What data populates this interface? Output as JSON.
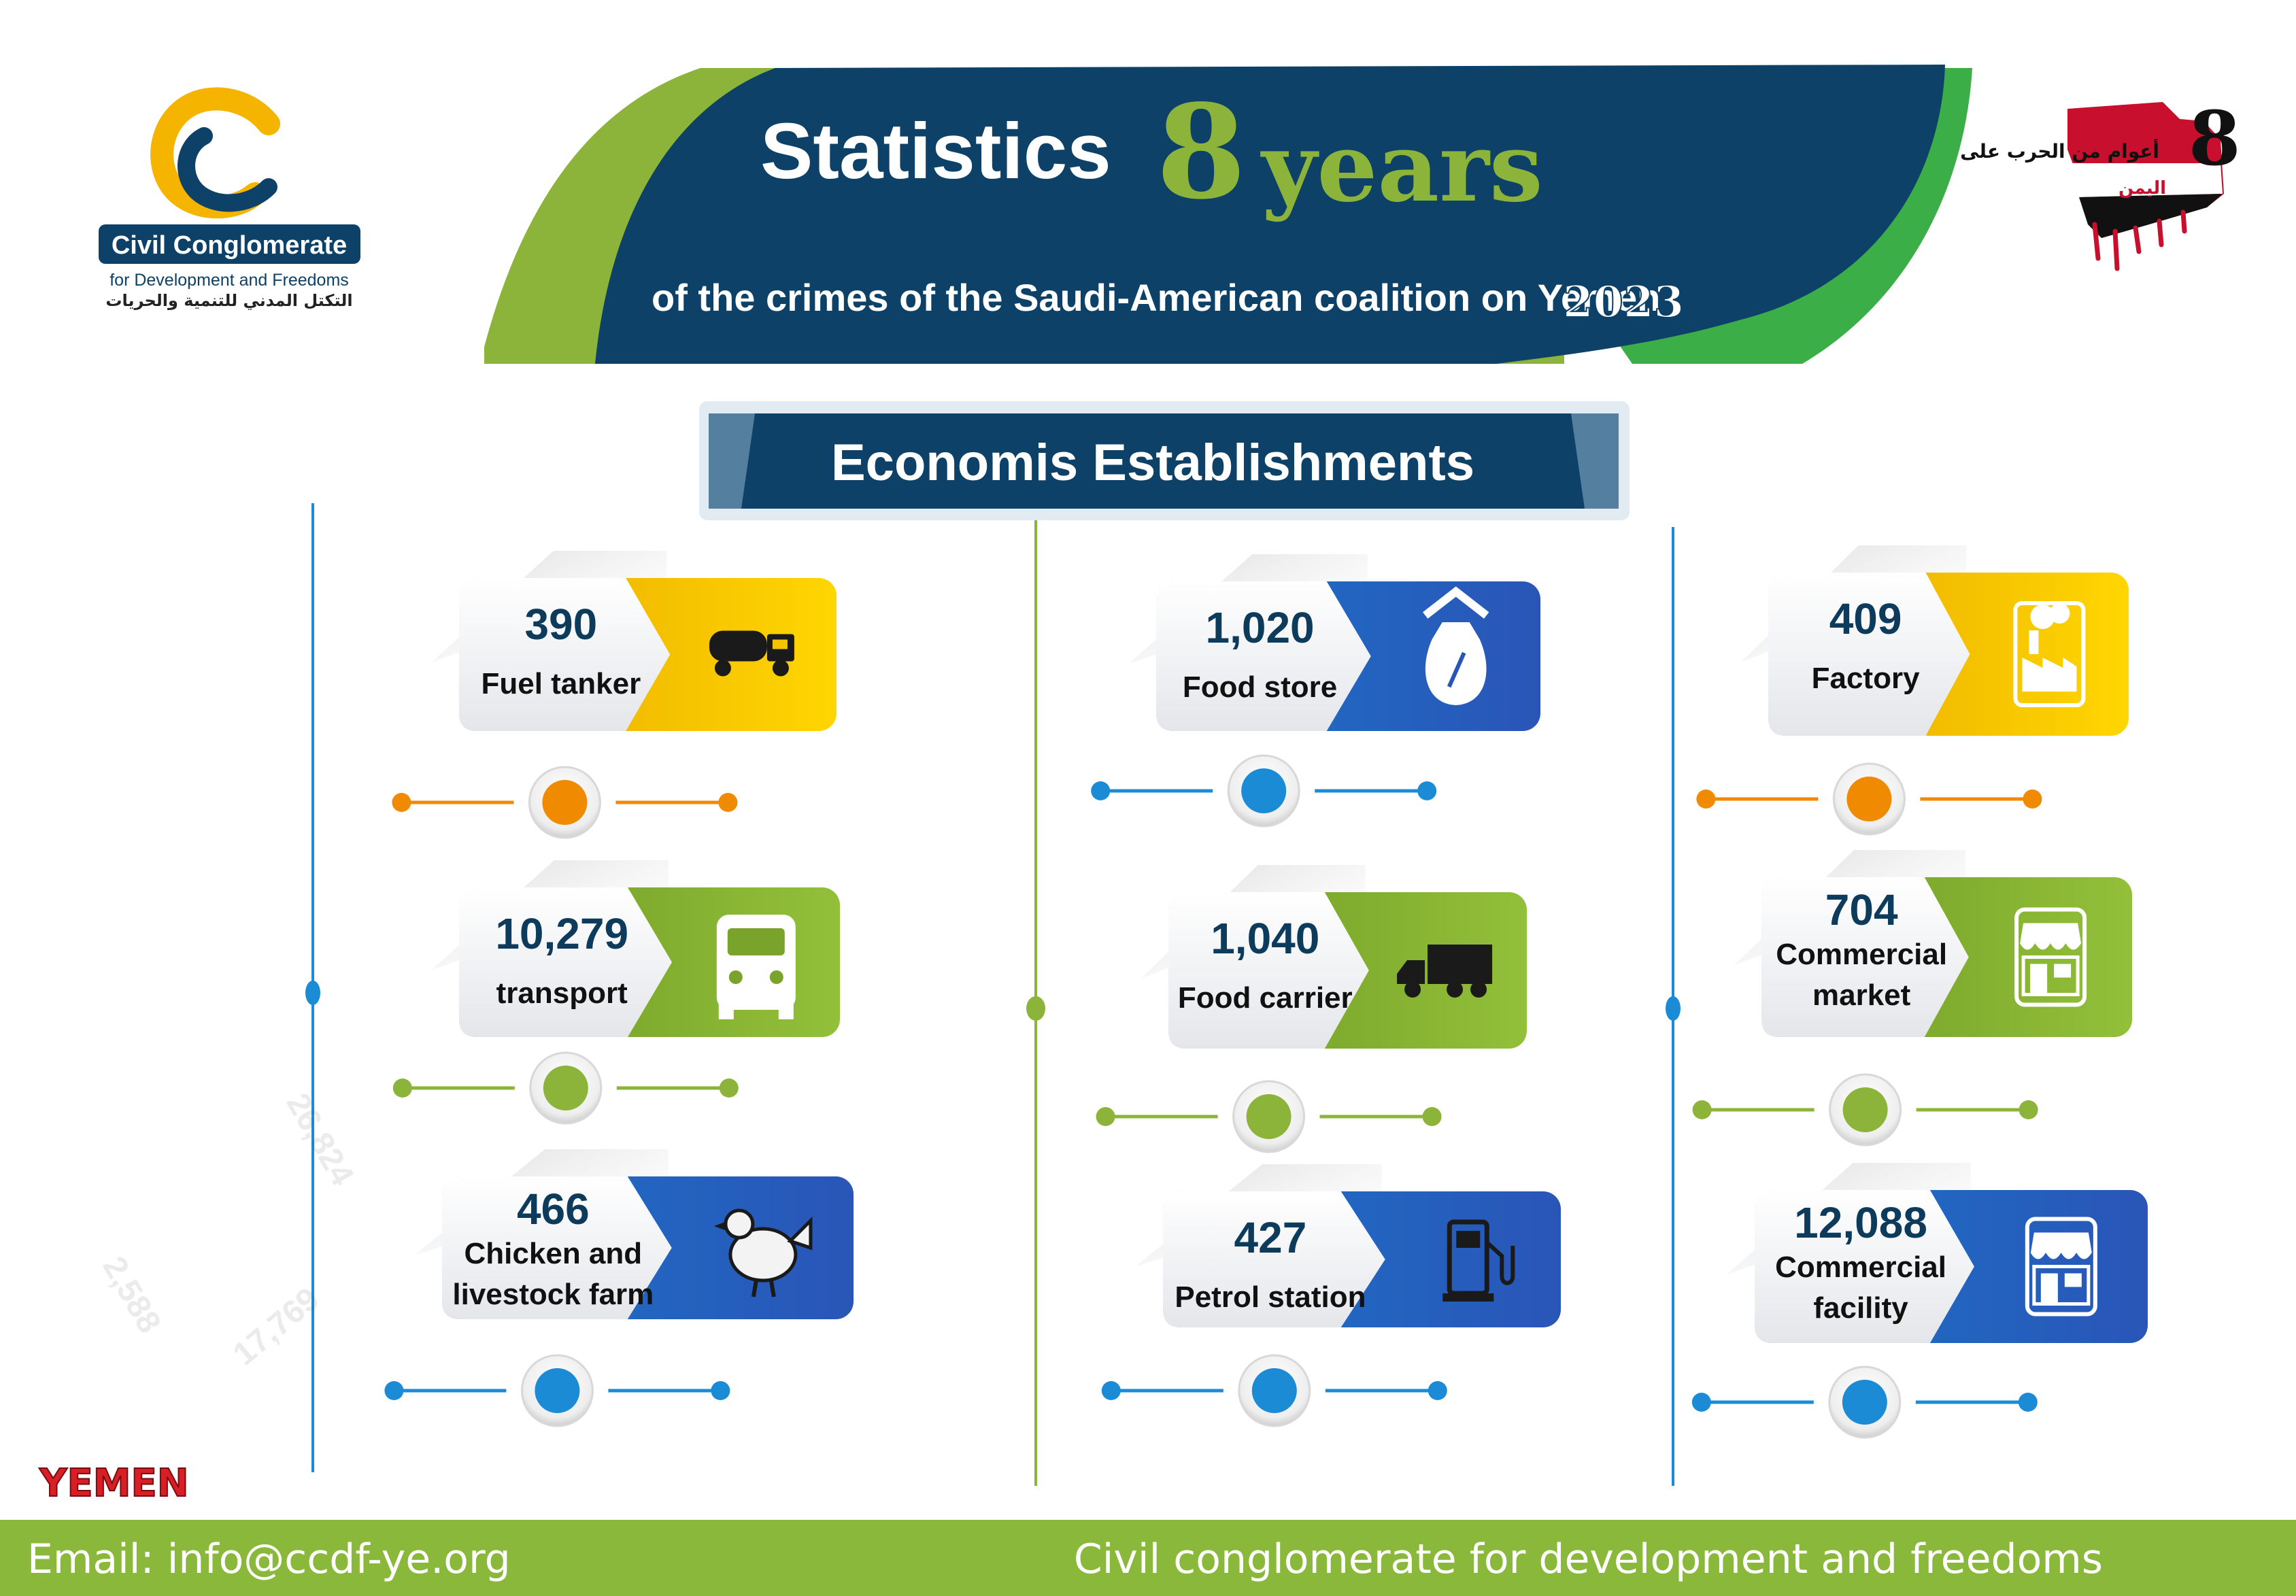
{
  "header": {
    "title_word": "Statistics",
    "title_number": "8",
    "title_suffix": "years",
    "subtitle": "of the crimes of the Saudi-American coalition on Yemen",
    "year": "2023"
  },
  "org_logo": {
    "name": "Civil Conglomerate",
    "tagline": "for Development and Freedoms",
    "tagline_ar": "التكتل المدني للتنمية والحريات"
  },
  "campaign_logo": {
    "text_ar": "أعوام من الحرب على",
    "text_ar_red": "اليمن",
    "number": "8"
  },
  "section": {
    "title": "Economis Establishments"
  },
  "cards": [
    {
      "value": "390",
      "label_lines": [
        "Fuel tanker"
      ],
      "icon": "fuel-tanker-icon",
      "color": "yellow"
    },
    {
      "value": "10,279",
      "label_lines": [
        "transport"
      ],
      "icon": "car-icon",
      "color": "green"
    },
    {
      "value": "466",
      "label_lines": [
        "Chicken and",
        "livestock farm"
      ],
      "icon": "chicken-icon",
      "color": "blue"
    },
    {
      "value": "1,020",
      "label_lines": [
        "Food store"
      ],
      "icon": "food-store-icon",
      "color": "blue"
    },
    {
      "value": "1,040",
      "label_lines": [
        "Food carrier"
      ],
      "icon": "truck-icon",
      "color": "green"
    },
    {
      "value": "427",
      "label_lines": [
        "Petrol station"
      ],
      "icon": "fuel-pump-icon",
      "color": "blue"
    },
    {
      "value": "409",
      "label_lines": [
        "Factory"
      ],
      "icon": "factory-icon",
      "color": "yellow"
    },
    {
      "value": "704",
      "label_lines": [
        "Commercial",
        "market"
      ],
      "icon": "market-icon",
      "color": "green"
    },
    {
      "value": "12,088",
      "label_lines": [
        "Commercial",
        "facility"
      ],
      "icon": "storefront-icon",
      "color": "blue"
    }
  ],
  "watermark_logo": "YEMEN",
  "footer": {
    "email": "Email: info@ccdf-ye.org",
    "org": "Civil conglomerate for development and freedoms"
  },
  "colors": {
    "navy": "#0d4168",
    "green": "#8db43a",
    "yellow": "#f5c400",
    "blue": "#1f6fc4",
    "orange": "#f08a00",
    "footer_green": "#8ab83a"
  }
}
